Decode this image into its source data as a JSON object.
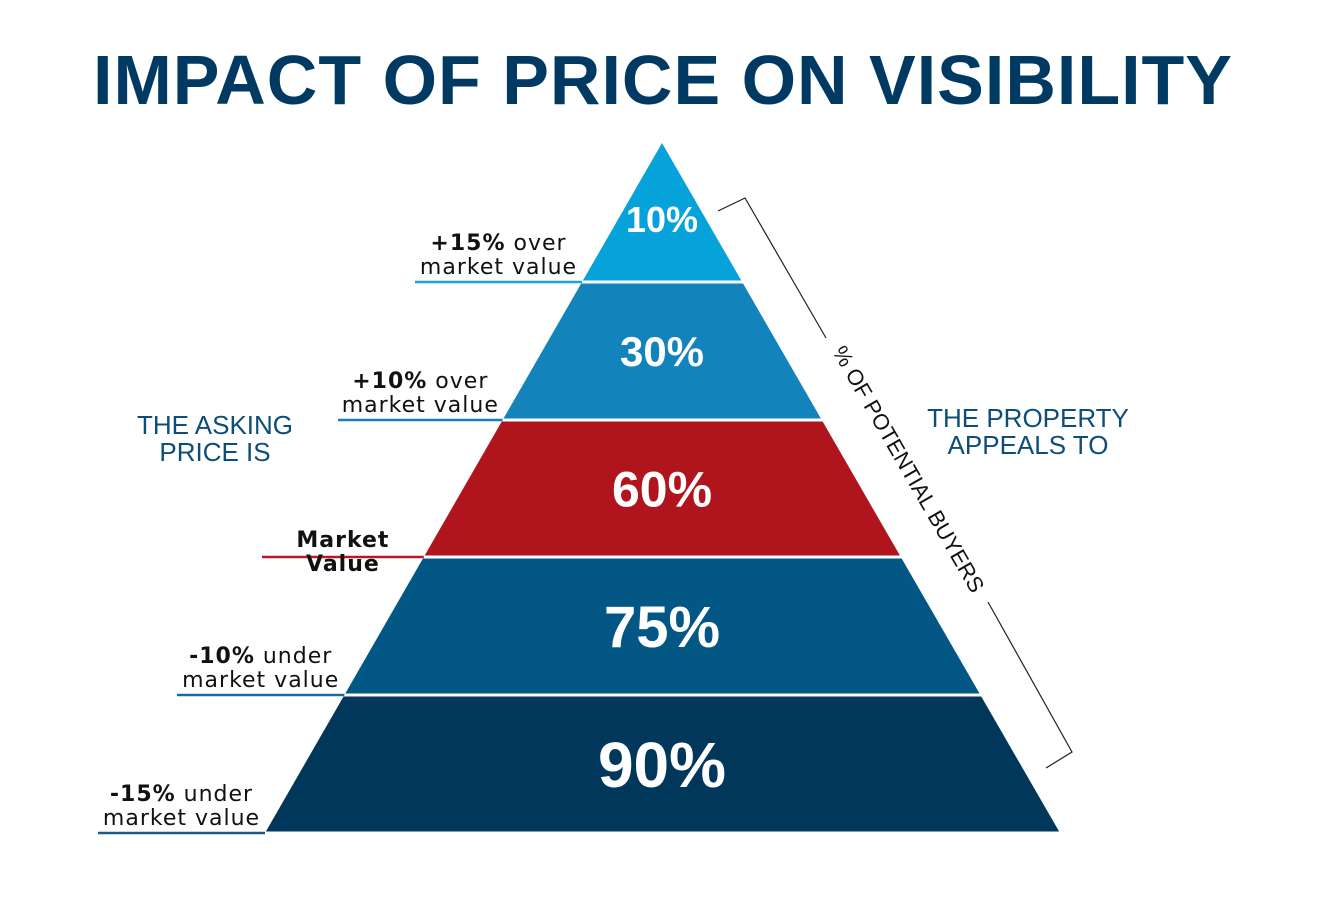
{
  "title": "IMPACT OF PRICE ON VISIBILITY",
  "left_heading": [
    "THE ASKING",
    "PRICE IS"
  ],
  "right_heading": [
    "THE PROPERTY",
    "APPEALS TO"
  ],
  "bracket_label": "% OF POTENTIAL BUYERS",
  "layers": [
    {
      "value": "10%",
      "color": "#06a3db",
      "label_bold": "+15%",
      "label_rest": " over",
      "label_line2": "market value",
      "line_color": "#1ca6de"
    },
    {
      "value": "30%",
      "color": "#1283bb",
      "label_bold": "+10%",
      "label_rest": " over",
      "label_line2": "market value",
      "line_color": "#1a7fbd"
    },
    {
      "value": "60%",
      "color": "#b0151e",
      "label_bold": "Market Value",
      "label_rest": "",
      "label_line2": "",
      "line_color": "#b81a22"
    },
    {
      "value": "75%",
      "color": "#025784",
      "label_bold": "-10%",
      "label_rest": " under",
      "label_line2": "market value",
      "line_color": "#1a6aa0"
    },
    {
      "value": "90%",
      "color": "#02375c",
      "label_bold": "-15%",
      "label_rest": " under",
      "label_line2": "market value",
      "line_color": "#1a5a8a"
    }
  ]
}
